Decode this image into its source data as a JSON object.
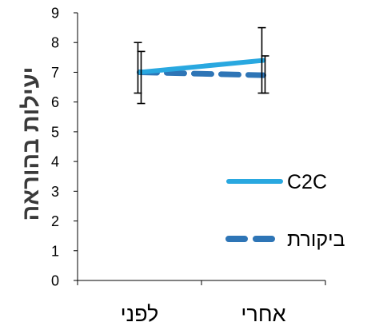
{
  "chart_data": {
    "type": "line",
    "ylabel": "יעילות בהוראה",
    "xlabel": "",
    "categories": [
      "לפני",
      "אחרי"
    ],
    "ylim": [
      0,
      9
    ],
    "yticks": [
      0,
      1,
      2,
      3,
      4,
      5,
      6,
      7,
      8,
      9
    ],
    "grid": false,
    "legend_position": "right",
    "series": [
      {
        "name": "C2C",
        "values": [
          7.0,
          7.4
        ],
        "error_low": [
          6.3,
          6.3
        ],
        "error_high": [
          8.0,
          8.5
        ],
        "color": "#29a8e0",
        "dash": "solid"
      },
      {
        "name": "ביקורת",
        "values": [
          7.0,
          6.9
        ],
        "error_low": [
          5.95,
          6.3
        ],
        "error_high": [
          7.7,
          7.55
        ],
        "color": "#2e75b6",
        "dash": "dashed"
      }
    ]
  }
}
